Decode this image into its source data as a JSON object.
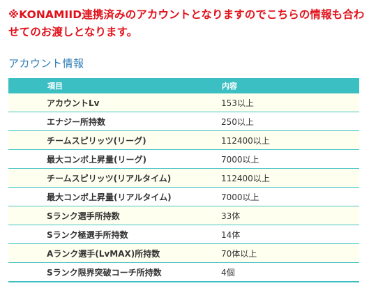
{
  "notice": "※KONAMIID連携済みのアカウントとなりますのでこちらの情報も合わせてのお渡しとなります。",
  "section_title": "アカウント情報",
  "table": {
    "headers": [
      "項目",
      "内容"
    ],
    "rows": [
      [
        "アカウントLv",
        "153以上"
      ],
      [
        "エナジー所持数",
        "250以上"
      ],
      [
        "チームスピリッツ(リーグ)",
        "112400以上"
      ],
      [
        "最大コンボ上昇量(リーグ)",
        "7000以上"
      ],
      [
        "チームスピリッツ(リアルタイム)",
        "112400以上"
      ],
      [
        "最大コンボ上昇量(リアルタイム)",
        "7000以上"
      ],
      [
        "Sランク選手所持数",
        "33体"
      ],
      [
        "Sランク極選手所持数",
        "14体"
      ],
      [
        "Aランク選手(LvMAX)所持数",
        "70体以上"
      ],
      [
        "Sランク限界突破コーチ所持数",
        "4個"
      ]
    ]
  },
  "colors": {
    "notice_red": "#e0121b",
    "title_blue": "#2e7db5",
    "header_teal": "#3bbfc3",
    "row_tint": "#fffff0"
  }
}
